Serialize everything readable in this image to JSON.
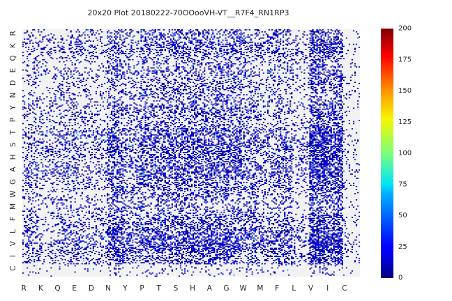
{
  "chart_data": {
    "type": "heatmap",
    "title": "20x20 Plot 20180222-70OOooVH-VT__R7F4_RN1RP3",
    "x_categories": [
      "R",
      "K",
      "Q",
      "E",
      "D",
      "N",
      "Y",
      "P",
      "T",
      "S",
      "H",
      "A",
      "G",
      "W",
      "M",
      "F",
      "L",
      "V",
      "I",
      "C"
    ],
    "y_categories_top_to_bottom": [
      "R",
      "K",
      "Q",
      "E",
      "D",
      "N",
      "Y",
      "P",
      "T",
      "S",
      "H",
      "A",
      "G",
      "W",
      "M",
      "F",
      "L",
      "V",
      "I",
      "C"
    ],
    "cells_per_category": 12,
    "colorbar": {
      "min": 0,
      "max": 200,
      "ticks": [
        0,
        25,
        50,
        75,
        100,
        125,
        150,
        175,
        200
      ],
      "colormap": "jet"
    },
    "background_color": "#f2f2f2",
    "approx_fill_probability_by_x": [
      0.25,
      0.2,
      0.25,
      0.25,
      0.2,
      0.45,
      0.3,
      0.4,
      0.4,
      0.45,
      0.45,
      0.45,
      0.45,
      0.35,
      0.3,
      0.35,
      0.2,
      0.65,
      0.55,
      0.1
    ],
    "approx_fill_probability_by_y": [
      0.35,
      0.45,
      0.3,
      0.35,
      0.3,
      0.3,
      0.4,
      0.35,
      0.5,
      0.55,
      0.5,
      0.5,
      0.45,
      0.35,
      0.3,
      0.45,
      0.55,
      0.6,
      0.45,
      0.1
    ],
    "typical_value_range": [
      0,
      25
    ]
  }
}
